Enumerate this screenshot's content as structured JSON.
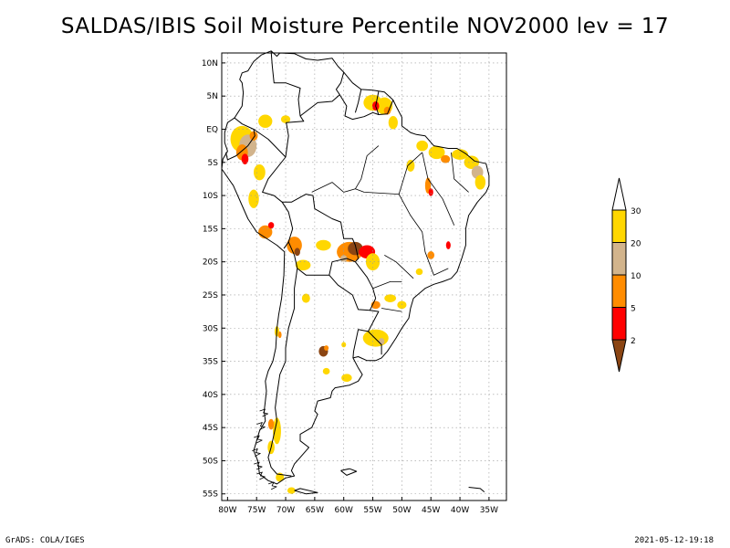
{
  "title": "SALDAS/IBIS Soil Moisture Percentile NOV2000 lev = 17",
  "footer_left": "GrADS: COLA/IGES",
  "footer_right": "2021-05-12-19:18",
  "map": {
    "lon_range": [
      -81,
      -32
    ],
    "lat_range": [
      -56,
      11.5
    ],
    "lon_ticks": [
      {
        "value": -80,
        "label": "80W"
      },
      {
        "value": -75,
        "label": "75W"
      },
      {
        "value": -70,
        "label": "70W"
      },
      {
        "value": -65,
        "label": "65W"
      },
      {
        "value": -60,
        "label": "60W"
      },
      {
        "value": -55,
        "label": "55W"
      },
      {
        "value": -50,
        "label": "50W"
      },
      {
        "value": -45,
        "label": "45W"
      },
      {
        "value": -40,
        "label": "40W"
      },
      {
        "value": -35,
        "label": "35W"
      }
    ],
    "lat_ticks": [
      {
        "value": 10,
        "label": "10N"
      },
      {
        "value": 5,
        "label": "5N"
      },
      {
        "value": 0,
        "label": "EQ"
      },
      {
        "value": -5,
        "label": "5S"
      },
      {
        "value": -10,
        "label": "10S"
      },
      {
        "value": -15,
        "label": "15S"
      },
      {
        "value": -20,
        "label": "20S"
      },
      {
        "value": -25,
        "label": "25S"
      },
      {
        "value": -30,
        "label": "30S"
      },
      {
        "value": -35,
        "label": "35S"
      },
      {
        "value": -40,
        "label": "40S"
      },
      {
        "value": -45,
        "label": "45S"
      },
      {
        "value": -50,
        "label": "50S"
      },
      {
        "value": -55,
        "label": "55S"
      }
    ],
    "gridlines": "dotted"
  },
  "legend": {
    "bins": [
      {
        "color": "#ffd700",
        "label": "30"
      },
      {
        "color": "#d2b48c",
        "label": "20"
      },
      {
        "color": "#ff8c00",
        "label": "10"
      },
      {
        "color": "#ff0000",
        "label": "5"
      },
      {
        "color": "#8b4513",
        "label": "2"
      }
    ],
    "top_arrow_color": "#ffffff"
  },
  "patches": [
    {
      "lon": -77.5,
      "lat": -1.5,
      "rx": 2.0,
      "ry": 2.0,
      "color": "#ffd700"
    },
    {
      "lon": -76.5,
      "lat": -2.5,
      "rx": 1.5,
      "ry": 1.7,
      "color": "#d2b48c"
    },
    {
      "lon": -77.5,
      "lat": -3.5,
      "rx": 1.0,
      "ry": 1.2,
      "color": "#ff8c00"
    },
    {
      "lon": -77.0,
      "lat": -4.5,
      "rx": 0.6,
      "ry": 0.8,
      "color": "#ff0000"
    },
    {
      "lon": -75.5,
      "lat": -1.0,
      "rx": 0.7,
      "ry": 0.7,
      "color": "#ff8c00"
    },
    {
      "lon": -73.5,
      "lat": 1.2,
      "rx": 1.2,
      "ry": 1.0,
      "color": "#ffd700"
    },
    {
      "lon": -70.0,
      "lat": 1.5,
      "rx": 0.8,
      "ry": 0.6,
      "color": "#ffd700"
    },
    {
      "lon": -74.5,
      "lat": -6.5,
      "rx": 1.0,
      "ry": 1.2,
      "color": "#ffd700"
    },
    {
      "lon": -75.5,
      "lat": -10.5,
      "rx": 0.9,
      "ry": 1.4,
      "color": "#ffd700"
    },
    {
      "lon": -73.5,
      "lat": -15.5,
      "rx": 1.2,
      "ry": 1.0,
      "color": "#ff8c00"
    },
    {
      "lon": -72.5,
      "lat": -14.5,
      "rx": 0.5,
      "ry": 0.5,
      "color": "#ff0000"
    },
    {
      "lon": -68.5,
      "lat": -17.5,
      "rx": 1.3,
      "ry": 1.3,
      "color": "#ff8c00"
    },
    {
      "lon": -68.0,
      "lat": -18.5,
      "rx": 0.5,
      "ry": 0.6,
      "color": "#8b4513"
    },
    {
      "lon": -67.0,
      "lat": -20.5,
      "rx": 1.3,
      "ry": 0.8,
      "color": "#ffd700"
    },
    {
      "lon": -63.5,
      "lat": -17.5,
      "rx": 1.3,
      "ry": 0.8,
      "color": "#ffd700"
    },
    {
      "lon": -59.0,
      "lat": -18.5,
      "rx": 2.2,
      "ry": 1.5,
      "color": "#ff8c00"
    },
    {
      "lon": -58.0,
      "lat": -18.0,
      "rx": 1.3,
      "ry": 1.0,
      "color": "#8b4513"
    },
    {
      "lon": -56.0,
      "lat": -18.5,
      "rx": 1.4,
      "ry": 1.0,
      "color": "#ff0000"
    },
    {
      "lon": -60.0,
      "lat": -19.5,
      "rx": 0.6,
      "ry": 0.5,
      "color": "#d2b48c"
    },
    {
      "lon": -55.0,
      "lat": -20.0,
      "rx": 1.2,
      "ry": 1.3,
      "color": "#ffd700"
    },
    {
      "lon": -55.0,
      "lat": 4.0,
      "rx": 1.6,
      "ry": 1.2,
      "color": "#ffd700"
    },
    {
      "lon": -53.0,
      "lat": 3.5,
      "rx": 1.4,
      "ry": 1.3,
      "color": "#ffd700"
    },
    {
      "lon": -54.5,
      "lat": 3.5,
      "rx": 0.6,
      "ry": 0.7,
      "color": "#ff0000"
    },
    {
      "lon": -52.5,
      "lat": 2.8,
      "rx": 0.6,
      "ry": 0.6,
      "color": "#ff8c00"
    },
    {
      "lon": -51.5,
      "lat": 1.0,
      "rx": 0.8,
      "ry": 1.0,
      "color": "#ffd700"
    },
    {
      "lon": -46.5,
      "lat": -2.5,
      "rx": 1.0,
      "ry": 0.8,
      "color": "#ffd700"
    },
    {
      "lon": -44.0,
      "lat": -3.5,
      "rx": 1.4,
      "ry": 1.0,
      "color": "#ffd700"
    },
    {
      "lon": -42.5,
      "lat": -4.5,
      "rx": 0.8,
      "ry": 0.6,
      "color": "#ff8c00"
    },
    {
      "lon": -40.0,
      "lat": -3.8,
      "rx": 1.4,
      "ry": 0.8,
      "color": "#ffd700"
    },
    {
      "lon": -38.0,
      "lat": -5.0,
      "rx": 1.3,
      "ry": 1.0,
      "color": "#ffd700"
    },
    {
      "lon": -37.0,
      "lat": -6.5,
      "rx": 1.0,
      "ry": 1.0,
      "color": "#d2b48c"
    },
    {
      "lon": -36.5,
      "lat": -8.0,
      "rx": 0.9,
      "ry": 1.1,
      "color": "#ffd700"
    },
    {
      "lon": -45.5,
      "lat": -8.5,
      "rx": 0.5,
      "ry": 1.2,
      "color": "#ff8c00"
    },
    {
      "lon": -45.0,
      "lat": -9.5,
      "rx": 0.4,
      "ry": 0.6,
      "color": "#ff0000"
    },
    {
      "lon": -48.5,
      "lat": -5.5,
      "rx": 0.7,
      "ry": 0.9,
      "color": "#ffd700"
    },
    {
      "lon": -45.0,
      "lat": -19.0,
      "rx": 0.6,
      "ry": 0.6,
      "color": "#ff8c00"
    },
    {
      "lon": -42.0,
      "lat": -17.5,
      "rx": 0.4,
      "ry": 0.6,
      "color": "#ff0000"
    },
    {
      "lon": -47.0,
      "lat": -21.5,
      "rx": 0.6,
      "ry": 0.5,
      "color": "#ffd700"
    },
    {
      "lon": -52.0,
      "lat": -25.5,
      "rx": 1.0,
      "ry": 0.6,
      "color": "#ffd700"
    },
    {
      "lon": -50.0,
      "lat": -26.5,
      "rx": 0.8,
      "ry": 0.6,
      "color": "#ffd700"
    },
    {
      "lon": -54.5,
      "lat": -26.5,
      "rx": 0.8,
      "ry": 0.6,
      "color": "#ff8c00"
    },
    {
      "lon": -54.5,
      "lat": -31.5,
      "rx": 2.2,
      "ry": 1.3,
      "color": "#ffd700"
    },
    {
      "lon": -53.5,
      "lat": -32.0,
      "rx": 0.5,
      "ry": 0.5,
      "color": "#d2b48c"
    },
    {
      "lon": -66.5,
      "lat": -25.5,
      "rx": 0.7,
      "ry": 0.7,
      "color": "#ffd700"
    },
    {
      "lon": -71.5,
      "lat": -30.5,
      "rx": 0.4,
      "ry": 0.8,
      "color": "#ffd700"
    },
    {
      "lon": -71.0,
      "lat": -31.0,
      "rx": 0.3,
      "ry": 0.5,
      "color": "#ff8c00"
    },
    {
      "lon": -63.5,
      "lat": -33.5,
      "rx": 0.8,
      "ry": 0.8,
      "color": "#8b4513"
    },
    {
      "lon": -63.0,
      "lat": -33.0,
      "rx": 0.4,
      "ry": 0.4,
      "color": "#ff8c00"
    },
    {
      "lon": -60.0,
      "lat": -32.5,
      "rx": 0.4,
      "ry": 0.4,
      "color": "#ffd700"
    },
    {
      "lon": -63.0,
      "lat": -36.5,
      "rx": 0.6,
      "ry": 0.5,
      "color": "#ffd700"
    },
    {
      "lon": -59.5,
      "lat": -37.5,
      "rx": 0.9,
      "ry": 0.6,
      "color": "#ffd700"
    },
    {
      "lon": -71.5,
      "lat": -45.5,
      "rx": 0.7,
      "ry": 2.0,
      "color": "#ffd700"
    },
    {
      "lon": -72.5,
      "lat": -44.5,
      "rx": 0.5,
      "ry": 0.8,
      "color": "#ff8c00"
    },
    {
      "lon": -72.5,
      "lat": -48.0,
      "rx": 0.6,
      "ry": 1.0,
      "color": "#ffd700"
    },
    {
      "lon": -71.0,
      "lat": -52.5,
      "rx": 0.7,
      "ry": 0.7,
      "color": "#ffd700"
    },
    {
      "lon": -69.0,
      "lat": -54.5,
      "rx": 0.7,
      "ry": 0.5,
      "color": "#ffd700"
    }
  ]
}
